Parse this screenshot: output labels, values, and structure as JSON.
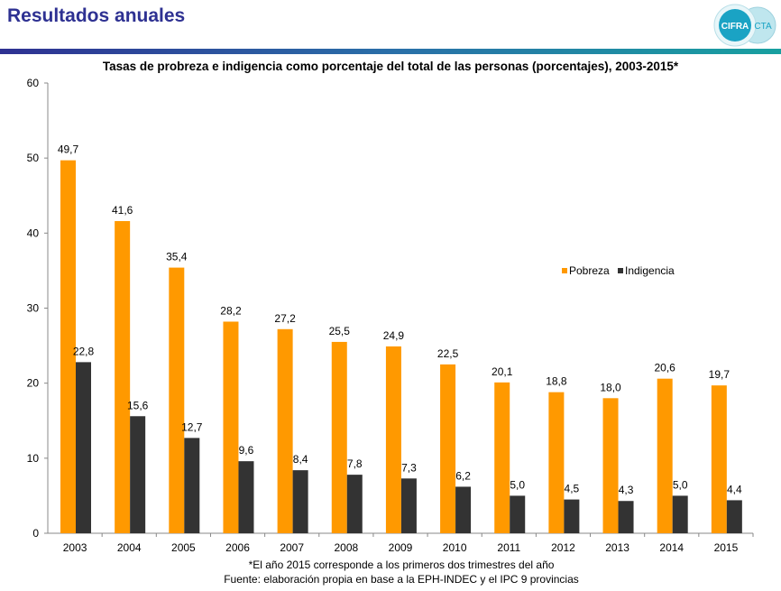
{
  "header": {
    "title": "Resultados anuales",
    "logo": {
      "left": "CIFRA",
      "right": "CTA"
    }
  },
  "colors": {
    "pobreza": "#ff9900",
    "indigencia": "#333333",
    "title": "#2e3192"
  },
  "chart_data": {
    "type": "bar",
    "title": "Tasas de probreza e indigencia como porcentaje del total de las personas (porcentajes), 2003-2015*",
    "categories": [
      "2003",
      "2004",
      "2005",
      "2006",
      "2007",
      "2008",
      "2009",
      "2010",
      "2011",
      "2012",
      "2013",
      "2014",
      "2015"
    ],
    "series": [
      {
        "name": "Pobreza",
        "values": [
          49.7,
          41.6,
          35.4,
          28.2,
          27.2,
          25.5,
          24.9,
          22.5,
          20.1,
          18.8,
          18.0,
          20.6,
          19.7
        ]
      },
      {
        "name": "Indigencia",
        "values": [
          22.8,
          15.6,
          12.7,
          9.6,
          8.4,
          7.8,
          7.3,
          6.2,
          5.0,
          4.5,
          4.3,
          5.0,
          4.4
        ]
      }
    ],
    "ylim": [
      0,
      60
    ],
    "yticks": [
      0,
      10,
      20,
      30,
      40,
      50,
      60
    ],
    "grid": false,
    "legend": "right-middle",
    "decimal_separator": ",",
    "notes": [
      "*El año 2015 corresponde a los primeros dos trimestres del año",
      "Fuente: elaboración propia en base a la EPH-INDEC y el IPC 9 provincias"
    ]
  }
}
